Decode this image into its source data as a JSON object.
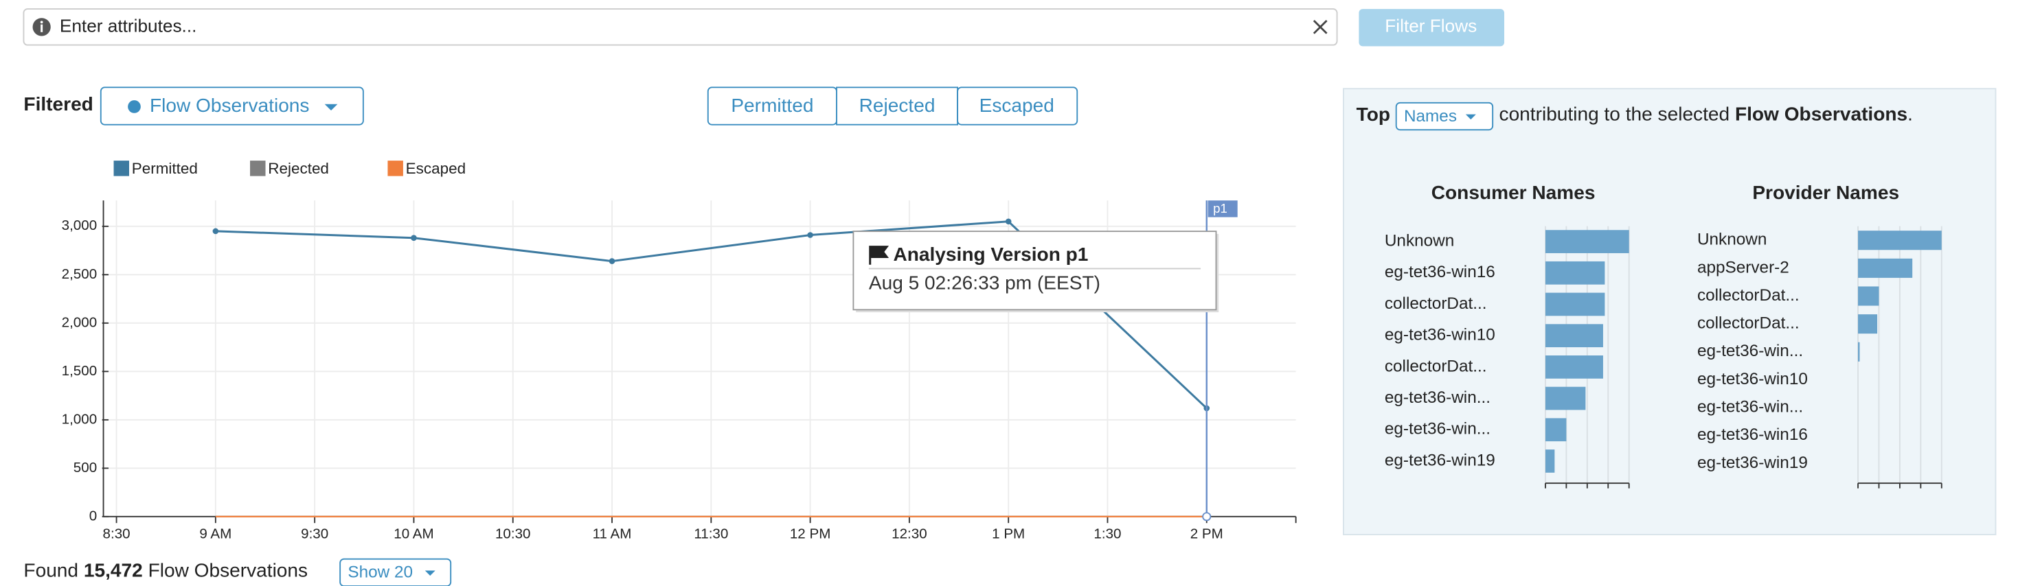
{
  "search": {
    "placeholder": "Enter attributes...",
    "button": "Filter Flows"
  },
  "filter": {
    "label": "Filtered",
    "dropdown": "Flow Observations",
    "tabs": [
      "Permitted",
      "Rejected",
      "Escaped"
    ]
  },
  "tooltip": {
    "title": "Analysing Version p1",
    "time": "Aug 5 02:26:33 pm (EEST)"
  },
  "footer": {
    "prefix": "Found",
    "count": "15,472",
    "suffix": "Flow Observations",
    "show": "Show 20"
  },
  "top_panel": {
    "prefix": "Top",
    "dropdown": "Names",
    "text": "contributing to the selected",
    "bold": "Flow Observations",
    "end": "."
  },
  "chart_data": [
    {
      "type": "line",
      "x": [
        9,
        10,
        11,
        12,
        13,
        14
      ],
      "series": [
        {
          "name": "Permitted",
          "color": "#3d7aa0",
          "values": [
            2950,
            2880,
            2640,
            2910,
            3050,
            1120
          ]
        },
        {
          "name": "Rejected",
          "color": "#7f7f7f",
          "values": [
            0,
            0,
            0,
            0,
            0,
            0
          ]
        },
        {
          "name": "Escaped",
          "color": "#f07f3c",
          "values": [
            0,
            0,
            0,
            0,
            0,
            0
          ]
        }
      ],
      "xlim": [
        8.46,
        14.45
      ],
      "xticks": [
        {
          "value": 8.5,
          "label": "8:30"
        },
        {
          "value": 9,
          "label": "9 AM"
        },
        {
          "value": 9.5,
          "label": "9:30"
        },
        {
          "value": 10,
          "label": "10 AM"
        },
        {
          "value": 10.5,
          "label": "10:30"
        },
        {
          "value": 11,
          "label": "11 AM"
        },
        {
          "value": 11.5,
          "label": "11:30"
        },
        {
          "value": 12,
          "label": "12 PM"
        },
        {
          "value": 12.5,
          "label": "12:30"
        },
        {
          "value": 13,
          "label": "1 PM"
        },
        {
          "value": 13.5,
          "label": "1:30"
        },
        {
          "value": 14,
          "label": "2 PM"
        }
      ],
      "ylim": [
        0,
        3267
      ],
      "yticks": [
        0,
        500,
        {
          "value": 1000,
          "label": "1,000"
        },
        {
          "value": 1500,
          "label": "1,500"
        },
        {
          "value": 2000,
          "label": "2,000"
        },
        {
          "value": 2500,
          "label": "2,500"
        },
        {
          "value": 3000,
          "label": "3,000"
        }
      ],
      "grid": true,
      "annotations": [
        {
          "label": "p1",
          "x": 14,
          "color": "#6a8fc9"
        }
      ]
    },
    {
      "type": "hbar",
      "title": "Consumer Names",
      "categories": [
        "Unknown",
        "eg-tet36-win16",
        "collectorDat...",
        "eg-tet36-win10",
        "collectorDat...",
        "eg-tet36-win...",
        "eg-tet36-win...",
        "eg-tet36-win19"
      ],
      "values": [
        100,
        71,
        71,
        69,
        69,
        48,
        25,
        11
      ],
      "color": "#6aa3cb",
      "xlim": [
        0,
        100
      ],
      "xticks": [
        0,
        25,
        50,
        75,
        100
      ]
    },
    {
      "type": "hbar",
      "title": "Provider Names",
      "categories": [
        "Unknown",
        "appServer-2",
        "collectorDat...",
        "collectorDat...",
        "eg-tet36-win...",
        "eg-tet36-win10",
        "eg-tet36-win...",
        "eg-tet36-win16",
        "eg-tet36-win19"
      ],
      "values": [
        100,
        65,
        25,
        23,
        2,
        0,
        0,
        0,
        0
      ],
      "color": "#6aa3cb",
      "xlim": [
        0,
        100
      ],
      "xticks": [
        0,
        25,
        50,
        75,
        100
      ]
    }
  ]
}
